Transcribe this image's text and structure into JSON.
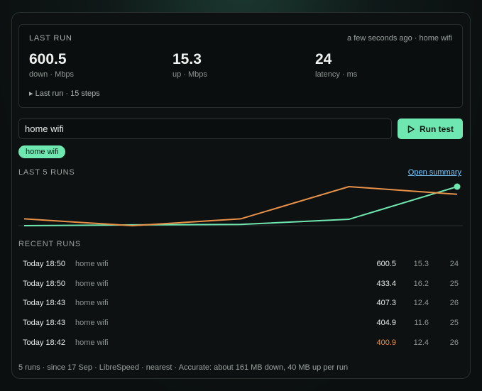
{
  "last_run": {
    "title": "LAST RUN",
    "meta": "a few seconds ago · home wifi",
    "down": {
      "value": "600.5",
      "label": "down · Mbps"
    },
    "up": {
      "value": "15.3",
      "label": "up · Mbps"
    },
    "latency": {
      "value": "24",
      "label": "latency · ms"
    },
    "steps_toggle": "▸ Last run · 15 steps"
  },
  "search": {
    "value": "home wifi"
  },
  "run_button": {
    "label": "Run test"
  },
  "tag": {
    "label": "home wifi"
  },
  "chart_section": {
    "title": "LAST 5 RUNS",
    "link": "Open summary"
  },
  "chart_data": {
    "type": "line",
    "x": [
      1,
      2,
      3,
      4,
      5
    ],
    "series": [
      {
        "values": [
          400.9,
          404.9,
          407.3,
          433.4,
          600.5
        ],
        "color": "#6fe7b0"
      },
      {
        "values": [
          12.4,
          11.6,
          12.4,
          16.2,
          15.3
        ],
        "color": "#e8924a"
      }
    ],
    "grid": false,
    "legend": false
  },
  "recent_section": {
    "title": "RECENT RUNS"
  },
  "runs": [
    {
      "date": "Today 18:50",
      "network": "home wifi",
      "down": "600.5",
      "up": "15.3",
      "latency": "24"
    },
    {
      "date": "Today 18:50",
      "network": "home wifi",
      "down": "433.4",
      "up": "16.2",
      "latency": "25"
    },
    {
      "date": "Today 18:43",
      "network": "home wifi",
      "down": "407.3",
      "up": "12.4",
      "latency": "26"
    },
    {
      "date": "Today 18:43",
      "network": "home wifi",
      "down": "404.9",
      "up": "11.6",
      "latency": "25"
    },
    {
      "date": "Today 18:42",
      "network": "home wifi",
      "down": "400.9",
      "up": "12.4",
      "latency": "26",
      "down_color": "#e8924a"
    }
  ],
  "footer": "5 runs · since 17 Sep · LibreSpeed · nearest · Accurate: about 161 MB down, 40 MB up per run"
}
